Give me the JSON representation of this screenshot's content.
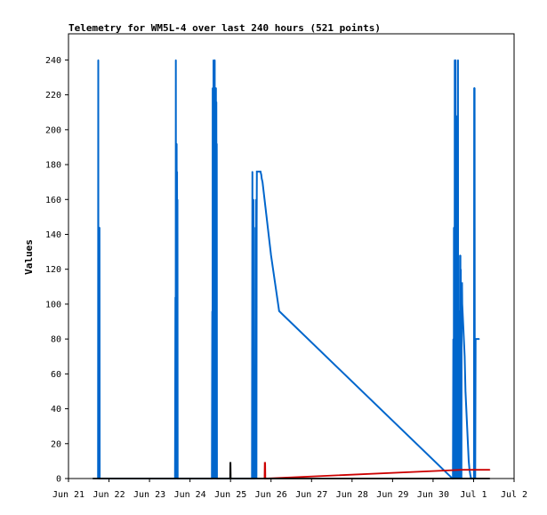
{
  "chart_data": {
    "type": "line",
    "title": "Telemetry for WM5L-4 over last 240 hours (521 points)",
    "xlabel": "",
    "ylabel": "Values",
    "ylim": [
      0,
      255
    ],
    "xlim": [
      0,
      11
    ],
    "yticks": [
      0,
      20,
      40,
      60,
      80,
      100,
      120,
      140,
      160,
      180,
      200,
      220,
      240
    ],
    "xtick_labels": [
      "Jun 21",
      "Jun 22",
      "Jun 23",
      "Jun 24",
      "Jun 25",
      "Jun 26",
      "Jun 27",
      "Jun 28",
      "Jun 29",
      "Jun 30",
      "Jul 1",
      "Jul 2"
    ],
    "grid": false,
    "legend": "none",
    "series": [
      {
        "color": "#0066cc",
        "x": [
          0.73,
          0.735,
          0.74,
          0.745,
          0.75,
          0.755,
          0.76,
          0.765,
          0.77,
          0.775,
          0.78,
          0.785,
          0.79,
          0.795,
          0.8,
          2.63,
          2.64,
          2.645,
          2.65,
          2.655,
          2.66,
          2.665,
          2.67,
          2.675,
          2.68,
          2.685,
          2.69,
          2.695,
          2.7,
          2.705,
          2.71,
          2.715,
          2.72,
          2.73,
          3.54,
          3.55,
          3.555,
          3.56,
          3.565,
          3.57,
          3.575,
          3.58,
          3.585,
          3.59,
          3.595,
          3.6,
          3.605,
          3.61,
          3.615,
          3.62,
          3.625,
          3.63,
          3.635,
          3.64,
          3.645,
          3.65,
          3.655,
          3.66,
          3.665,
          3.67,
          3.675,
          3.68,
          3.685,
          3.69,
          3.695,
          3.7,
          3.705,
          3.71,
          3.72,
          3.73,
          3.74,
          4.53,
          4.54,
          4.545,
          4.55,
          4.56,
          4.565,
          4.57,
          4.58,
          4.59,
          4.595,
          4.6,
          4.61,
          4.615,
          4.62,
          4.63,
          4.64,
          4.645,
          4.65,
          4.66,
          4.67,
          4.68,
          4.69,
          4.7,
          4.71,
          4.72,
          4.73,
          4.74,
          4.75,
          4.76,
          4.77,
          4.79,
          4.8,
          4.81,
          4.82,
          4.83,
          4.84,
          4.85,
          4.86,
          4.87,
          4.88,
          4.89,
          4.9,
          4.92,
          4.94,
          4.96,
          5.0,
          5.1,
          5.2,
          9.48,
          9.49,
          9.5,
          9.51,
          9.515,
          9.52,
          9.525,
          9.53,
          9.535,
          9.54,
          9.545,
          9.55,
          9.555,
          9.56,
          9.565,
          9.57,
          9.575,
          9.58,
          9.585,
          9.59,
          9.595,
          9.6,
          9.605,
          9.61,
          9.615,
          9.62,
          9.625,
          9.63,
          9.635,
          9.64,
          9.645,
          9.65,
          9.655,
          9.66,
          9.665,
          9.67,
          9.675,
          9.68,
          9.685,
          9.69,
          9.695,
          9.7,
          9.705,
          9.71,
          9.715,
          9.72,
          9.73,
          9.74,
          9.75,
          9.76,
          9.77,
          9.78,
          9.79,
          9.8,
          9.82,
          9.84,
          9.86,
          9.88,
          9.9,
          9.92,
          9.94,
          9.96,
          9.98,
          10.0,
          10.01,
          10.015,
          10.02,
          10.025,
          10.03,
          10.035,
          10.04,
          10.05,
          10.06,
          10.07,
          10.08,
          10.09,
          10.1,
          10.12,
          10.14
        ],
        "y": [
          0,
          240,
          0,
          112,
          0,
          128,
          0,
          144,
          0,
          0,
          0,
          0,
          0,
          0,
          0,
          0,
          104,
          0,
          240,
          0,
          176,
          0,
          192,
          0,
          176,
          0,
          160,
          0,
          0,
          0,
          0,
          0,
          0,
          0,
          0,
          96,
          0,
          224,
          0,
          96,
          0,
          240,
          0,
          192,
          0,
          160,
          0,
          240,
          0,
          224,
          0,
          192,
          0,
          224,
          0,
          216,
          0,
          192,
          0,
          0,
          0,
          0,
          0,
          0,
          0,
          0,
          0,
          0,
          0,
          0,
          0,
          0,
          176,
          0,
          160,
          0,
          160,
          0,
          0,
          16,
          0,
          32,
          0,
          144,
          0,
          160,
          0,
          144,
          176,
          176,
          176,
          176,
          176,
          176,
          176,
          176,
          176,
          176,
          175,
          174,
          172,
          170,
          168,
          166,
          164,
          162,
          160,
          158,
          156,
          154,
          152,
          150,
          148,
          144,
          140,
          136,
          128,
          112,
          96,
          0,
          0,
          80,
          0,
          144,
          0,
          136,
          0,
          240,
          0,
          224,
          0,
          240,
          0,
          208,
          0,
          208,
          0,
          176,
          0,
          88,
          0,
          176,
          0,
          240,
          0,
          96,
          0,
          96,
          0,
          96,
          0,
          96,
          0,
          128,
          0,
          128,
          0,
          120,
          0,
          112,
          0,
          112,
          112,
          112,
          100,
          95,
          90,
          85,
          80,
          75,
          70,
          60,
          50,
          40,
          30,
          20,
          10,
          5,
          2,
          0,
          0,
          0,
          0,
          0,
          224,
          0,
          224,
          0,
          68,
          0,
          80,
          80,
          80,
          80,
          80,
          80,
          80,
          80
        ]
      },
      {
        "color": "#cc0000",
        "x": [
          4.84,
          4.845,
          4.85,
          4.855,
          4.86,
          9.7,
          9.8,
          10.0,
          10.2,
          10.4
        ],
        "y": [
          0,
          9,
          9,
          9,
          0,
          5,
          5,
          5,
          5,
          5
        ]
      },
      {
        "color": "#000000",
        "x": [
          0.6,
          3.99,
          3.995,
          4.0,
          4.005,
          10.4
        ],
        "y": [
          0,
          0,
          9,
          9,
          0,
          0
        ]
      }
    ]
  }
}
